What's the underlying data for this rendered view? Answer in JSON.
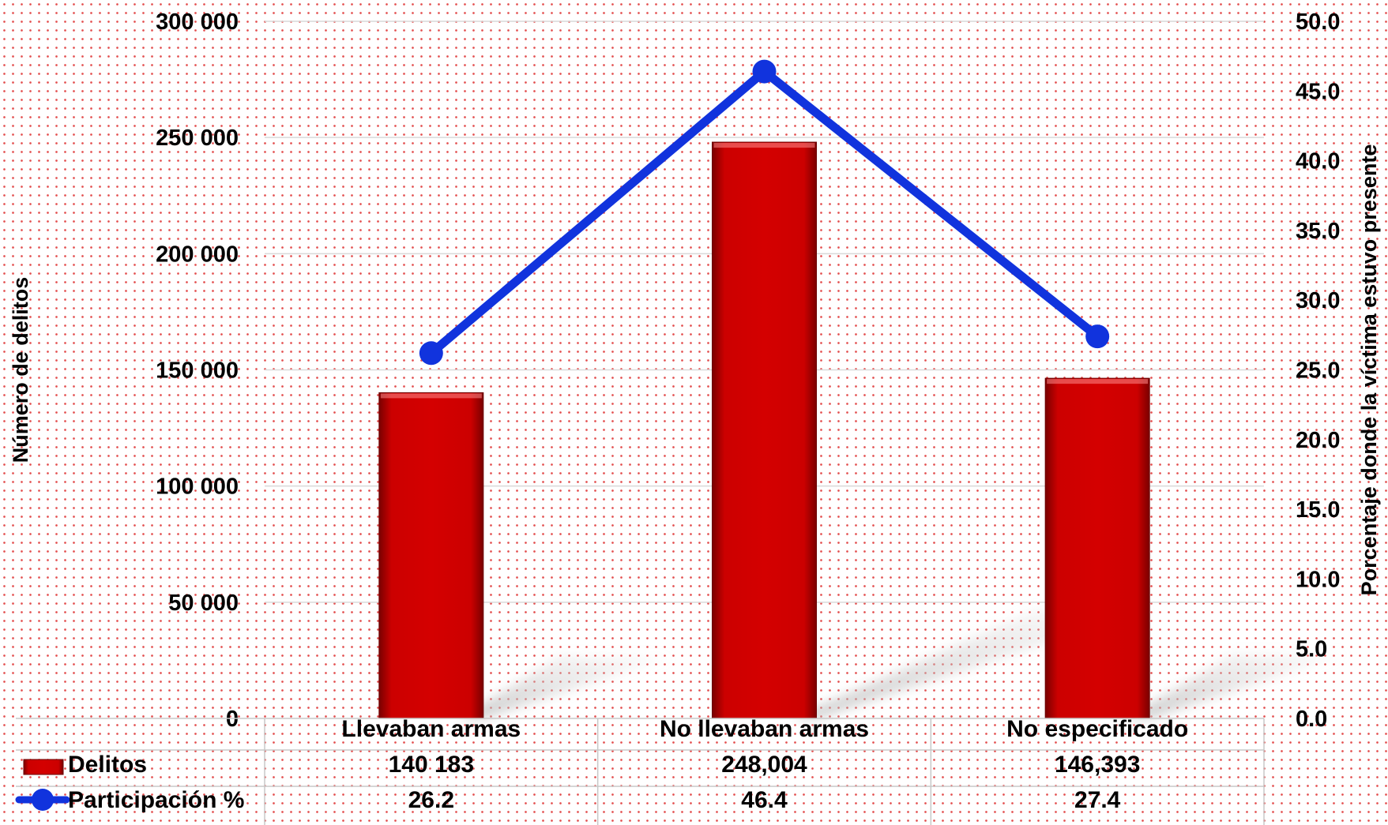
{
  "chart_data": {
    "type": "bar",
    "categories": [
      "Llevaban armas",
      "No llevaban armas",
      "No especificado"
    ],
    "series": [
      {
        "name": "Delitos",
        "kind": "bar",
        "axis": "left",
        "values": [
          140183,
          248004,
          146393
        ],
        "labels": [
          "140 183",
          "248,004",
          "146,393"
        ],
        "color": "#cc0000"
      },
      {
        "name": "Participación %",
        "kind": "line",
        "axis": "right",
        "values": [
          26.2,
          46.4,
          27.4
        ],
        "labels": [
          "26.2",
          "46.4",
          "27.4"
        ],
        "color": "#1133dd"
      }
    ],
    "ylabel": "Número de delitos",
    "y2label": "Porcentaje donde la víctima estuvo presente",
    "ylim": [
      0,
      300000
    ],
    "y2lim": [
      0,
      50
    ],
    "yticks": [
      "0",
      "50 000",
      "100 000",
      "150 000",
      "200 000",
      "250 000",
      "300 000"
    ],
    "y2ticks": [
      "0.0",
      "5.0",
      "10.0",
      "15.0",
      "20.0",
      "25.0",
      "30.0",
      "35.0",
      "40.0",
      "45.0",
      "50.0"
    ],
    "grid": true,
    "legend": "data table below plot"
  }
}
